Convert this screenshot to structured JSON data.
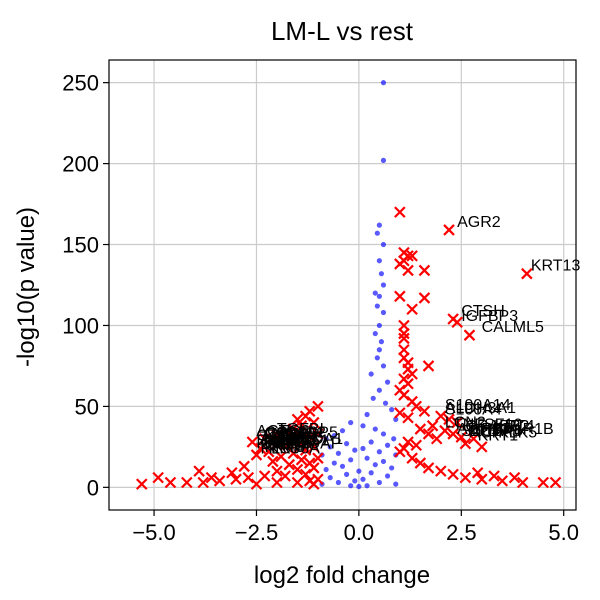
{
  "chart_data": {
    "type": "scatter",
    "title": "LM-L vs rest",
    "xlabel": "log2 fold change",
    "ylabel": "-log10(p value)",
    "xlim": [
      -6.1,
      5.3
    ],
    "ylim": [
      -14,
      264
    ],
    "grid": true,
    "x_ticks": [
      -5.0,
      -2.5,
      0.0,
      2.5,
      5.0
    ],
    "x_tick_labels": [
      "−5.0",
      "−2.5",
      "0.0",
      "2.5",
      "5.0"
    ],
    "y_ticks": [
      0,
      50,
      100,
      150,
      200,
      250
    ],
    "y_tick_labels": [
      "0",
      "50",
      "100",
      "150",
      "200",
      "250"
    ],
    "colors": {
      "not_significant": "#0000ff",
      "significant": "#ff0000"
    },
    "series": [
      {
        "marker": "circle",
        "color": "#0000ff",
        "points": [
          [
            0.6,
            250
          ],
          [
            0.6,
            202
          ],
          [
            0.5,
            162
          ],
          [
            0.45,
            157
          ],
          [
            0.6,
            150
          ],
          [
            0.5,
            140
          ],
          [
            0.55,
            132
          ],
          [
            0.6,
            125
          ],
          [
            0.4,
            120
          ],
          [
            0.5,
            118
          ],
          [
            0.45,
            112
          ],
          [
            0.6,
            108
          ],
          [
            0.5,
            100
          ],
          [
            0.4,
            95
          ],
          [
            0.55,
            90
          ],
          [
            0.5,
            85
          ],
          [
            0.45,
            80
          ],
          [
            0.6,
            75
          ],
          [
            0.3,
            70
          ],
          [
            0.7,
            65
          ],
          [
            0.5,
            60
          ],
          [
            0.35,
            55
          ],
          [
            0.65,
            52
          ],
          [
            0.8,
            48
          ],
          [
            0.2,
            45
          ],
          [
            0.9,
            42
          ],
          [
            -0.2,
            40
          ],
          [
            0.1,
            38
          ],
          [
            0.4,
            36
          ],
          [
            -0.4,
            35
          ],
          [
            0.6,
            33
          ],
          [
            -0.6,
            32
          ],
          [
            0.85,
            30
          ],
          [
            -0.8,
            30
          ],
          [
            0.3,
            28
          ],
          [
            -0.3,
            27
          ],
          [
            0.7,
            26
          ],
          [
            -0.7,
            25
          ],
          [
            0.1,
            24
          ],
          [
            -0.1,
            23
          ],
          [
            0.5,
            22
          ],
          [
            -0.5,
            21
          ],
          [
            0.9,
            20
          ],
          [
            -0.9,
            20
          ],
          [
            0.2,
            18
          ],
          [
            -0.2,
            17
          ],
          [
            0.6,
            16
          ],
          [
            -0.6,
            15
          ],
          [
            0.4,
            14
          ],
          [
            -0.4,
            13
          ],
          [
            0.8,
            12
          ],
          [
            -0.8,
            11
          ],
          [
            0.0,
            10
          ],
          [
            0.3,
            9
          ],
          [
            -0.3,
            8
          ],
          [
            0.7,
            7
          ],
          [
            -0.7,
            6
          ],
          [
            0.1,
            5
          ],
          [
            -0.1,
            4
          ],
          [
            0.5,
            3
          ],
          [
            -0.5,
            3
          ],
          [
            0.9,
            2
          ],
          [
            -0.9,
            2
          ],
          [
            0.2,
            1
          ],
          [
            -0.2,
            1
          ],
          [
            0.0,
            0.5
          ]
        ]
      },
      {
        "marker": "x",
        "color": "#ff0000",
        "points": [
          [
            1.0,
            170
          ],
          [
            2.2,
            159
          ],
          [
            4.1,
            132
          ],
          [
            1.1,
            145
          ],
          [
            1.2,
            143
          ],
          [
            1.3,
            143
          ],
          [
            1.1,
            140
          ],
          [
            1.0,
            138
          ],
          [
            1.2,
            134
          ],
          [
            1.6,
            134
          ],
          [
            2.3,
            104
          ],
          [
            2.4,
            102
          ],
          [
            2.7,
            94
          ],
          [
            1.0,
            118
          ],
          [
            1.6,
            117
          ],
          [
            1.3,
            110
          ],
          [
            1.1,
            100
          ],
          [
            1.1,
            95
          ],
          [
            1.1,
            92
          ],
          [
            1.1,
            85
          ],
          [
            1.7,
            75
          ],
          [
            1.1,
            80
          ],
          [
            1.2,
            77
          ],
          [
            1.2,
            73
          ],
          [
            1.3,
            70
          ],
          [
            1.1,
            67
          ],
          [
            1.2,
            64
          ],
          [
            1.0,
            60
          ],
          [
            1.1,
            57
          ],
          [
            1.3,
            53
          ],
          [
            1.4,
            50
          ],
          [
            1.6,
            47
          ],
          [
            1.0,
            46
          ],
          [
            1.2,
            43
          ],
          [
            2.0,
            44
          ],
          [
            2.2,
            42
          ],
          [
            2.4,
            40
          ],
          [
            1.8,
            38
          ],
          [
            2.1,
            35
          ],
          [
            2.3,
            33
          ],
          [
            2.5,
            31
          ],
          [
            2.8,
            30
          ],
          [
            2.6,
            27
          ],
          [
            3.0,
            25
          ],
          [
            1.5,
            36
          ],
          [
            1.7,
            33
          ],
          [
            1.9,
            30
          ],
          [
            1.2,
            28
          ],
          [
            1.4,
            26
          ],
          [
            1.1,
            24
          ],
          [
            1.0,
            22
          ],
          [
            1.3,
            18
          ],
          [
            1.5,
            15
          ],
          [
            1.7,
            12
          ],
          [
            2.0,
            10
          ],
          [
            2.3,
            8
          ],
          [
            2.6,
            6
          ],
          [
            3.0,
            5
          ],
          [
            3.5,
            4
          ],
          [
            4.0,
            3
          ],
          [
            4.5,
            3
          ],
          [
            4.8,
            3
          ],
          [
            3.3,
            7
          ],
          [
            3.8,
            6
          ],
          [
            2.9,
            9
          ],
          [
            -1.0,
            50
          ],
          [
            -1.2,
            47
          ],
          [
            -1.3,
            44
          ],
          [
            -1.5,
            42
          ],
          [
            -1.1,
            40
          ],
          [
            -1.4,
            38
          ],
          [
            -1.6,
            36
          ],
          [
            -1.8,
            34
          ],
          [
            -1.0,
            33
          ],
          [
            -2.0,
            32
          ],
          [
            -1.2,
            31
          ],
          [
            -2.3,
            30
          ],
          [
            -1.5,
            29
          ],
          [
            -2.6,
            28
          ],
          [
            -1.7,
            27
          ],
          [
            -2.0,
            26
          ],
          [
            -1.1,
            25
          ],
          [
            -2.4,
            24
          ],
          [
            -1.3,
            23
          ],
          [
            -2.2,
            22
          ],
          [
            -1.6,
            21
          ],
          [
            -2.5,
            20
          ],
          [
            -1.9,
            19
          ],
          [
            -1.0,
            18
          ],
          [
            -1.4,
            17
          ],
          [
            -2.1,
            16
          ],
          [
            -1.2,
            15
          ],
          [
            -1.7,
            14
          ],
          [
            -2.8,
            13
          ],
          [
            -1.1,
            12
          ],
          [
            -1.5,
            11
          ],
          [
            -2.0,
            10
          ],
          [
            -3.1,
            9
          ],
          [
            -1.3,
            8
          ],
          [
            -1.8,
            7
          ],
          [
            -2.3,
            7
          ],
          [
            -2.7,
            6
          ],
          [
            -3.0,
            5
          ],
          [
            -3.4,
            4
          ],
          [
            -3.8,
            3
          ],
          [
            -4.2,
            3
          ],
          [
            -4.6,
            3
          ],
          [
            -3.6,
            6
          ],
          [
            -3.9,
            10
          ],
          [
            -4.9,
            6
          ],
          [
            -5.3,
            2
          ],
          [
            -1.0,
            5
          ],
          [
            -1.2,
            4
          ],
          [
            -1.5,
            3
          ],
          [
            -2.0,
            3
          ],
          [
            -2.5,
            2
          ],
          [
            -1.1,
            2
          ]
        ]
      }
    ],
    "annotations": [
      {
        "text": "AGR2",
        "x": 2.3,
        "y": 159
      },
      {
        "text": "KRT13",
        "x": 4.1,
        "y": 132
      },
      {
        "text": "CTSH",
        "x": 2.4,
        "y": 104
      },
      {
        "text": "IGFBP3",
        "x": 2.4,
        "y": 101
      },
      {
        "text": "CALML5",
        "x": 2.9,
        "y": 94
      },
      {
        "text": "S100A14",
        "x": 2.0,
        "y": 46
      },
      {
        "text": "ALDH3A1",
        "x": 2.0,
        "y": 44
      },
      {
        "text": "S100A4",
        "x": 2.0,
        "y": 43
      },
      {
        "text": "LCN2",
        "x": 2.0,
        "y": 35
      },
      {
        "text": "TNFSF10",
        "x": 2.2,
        "y": 34
      },
      {
        "text": "CRABP2",
        "x": 2.5,
        "y": 33
      },
      {
        "text": "KRT4",
        "x": 3.2,
        "y": 33
      },
      {
        "text": "ADH1C",
        "x": 2.3,
        "y": 31
      },
      {
        "text": "KRT1",
        "x": 2.8,
        "y": 27
      },
      {
        "text": "DUSP6",
        "x": 2.6,
        "y": 30
      },
      {
        "text": "SLC7A5",
        "x": 2.4,
        "y": 30
      },
      {
        "text": "ACPP",
        "x": 2.6,
        "y": 29
      },
      {
        "text": "PPP1R1B",
        "x": 2.9,
        "y": 31
      },
      {
        "text": "KLK5",
        "x": 3.3,
        "y": 29
      },
      {
        "text": "ACTG2",
        "x": -2.6,
        "y": 30
      },
      {
        "text": "TGFBI",
        "x": -2.1,
        "y": 31
      },
      {
        "text": "COL1A2",
        "x": -2.4,
        "y": 29
      },
      {
        "text": "MGP",
        "x": -2.2,
        "y": 28
      },
      {
        "text": "CTGF",
        "x": -2.6,
        "y": 27
      },
      {
        "text": "SPARC",
        "x": -2.3,
        "y": 26
      },
      {
        "text": "IGFBP5",
        "x": -2.0,
        "y": 29
      },
      {
        "text": "TAGLN",
        "x": -2.5,
        "y": 24
      },
      {
        "text": "KRT15",
        "x": -2.6,
        "y": 22
      },
      {
        "text": "KRT14",
        "x": -2.5,
        "y": 21
      },
      {
        "text": "KRT5",
        "x": -2.4,
        "y": 20
      },
      {
        "text": "KRT17",
        "x": -2.3,
        "y": 22
      },
      {
        "text": "MYL9",
        "x": -2.2,
        "y": 23
      },
      {
        "text": "PLS3",
        "x": -2.5,
        "y": 19
      },
      {
        "text": "KRT6A",
        "x": -2.3,
        "y": 19
      },
      {
        "text": "FN1",
        "x": -2.2,
        "y": 21
      },
      {
        "text": "KRTDAP",
        "x": -2.1,
        "y": 22
      },
      {
        "text": "LGALS1",
        "x": -2.3,
        "y": 24
      },
      {
        "text": "S100A2",
        "x": -2.6,
        "y": 24
      },
      {
        "text": "CRYAB",
        "x": -2.4,
        "y": 28
      },
      {
        "text": "PHLDA1",
        "x": -2.0,
        "y": 25
      },
      {
        "text": "PERP",
        "x": -2.4,
        "y": 23
      },
      {
        "text": "DSP",
        "x": -2.1,
        "y": 27
      },
      {
        "text": "ANXA1",
        "x": -2.5,
        "y": 26
      }
    ]
  }
}
